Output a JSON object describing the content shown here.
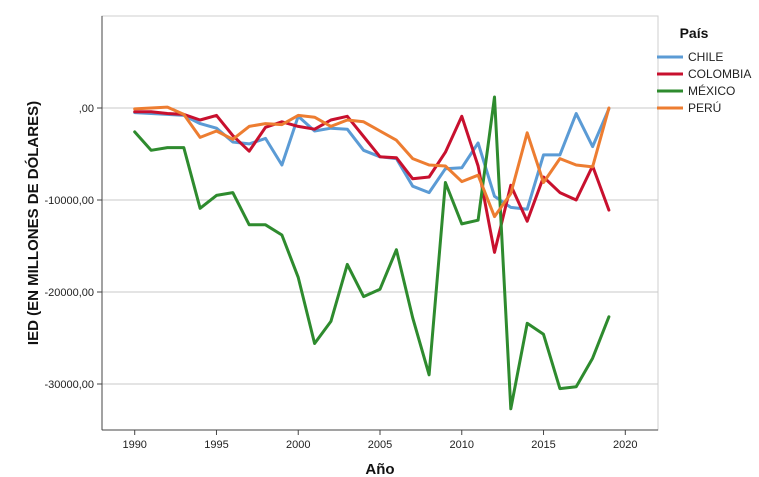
{
  "chart_data": {
    "type": "line",
    "xlabel": "Año",
    "ylabel": "IED (EN MILLONES DE DÓLARES)",
    "legend_title": "País",
    "legend_position": "top-right",
    "grid": true,
    "xlim": [
      1988,
      2022
    ],
    "ylim": [
      -35000,
      10000
    ],
    "x_ticks": [
      1990,
      1995,
      2000,
      2005,
      2010,
      2015,
      2020
    ],
    "x_tick_labels": [
      "1990",
      "1995",
      "2000",
      "2005",
      "2010",
      "2015",
      "2020"
    ],
    "y_ticks": [
      0,
      -10000,
      -20000,
      -30000
    ],
    "y_tick_labels": [
      ",00",
      "-10000,00",
      "-20000,00",
      "-30000,00"
    ],
    "x": [
      1990,
      1991,
      1992,
      1993,
      1994,
      1995,
      1996,
      1997,
      1998,
      1999,
      2000,
      2001,
      2002,
      2003,
      2004,
      2005,
      2006,
      2007,
      2008,
      2009,
      2010,
      2011,
      2012,
      2013,
      2014,
      2015,
      2016,
      2017,
      2018,
      2019
    ],
    "series": [
      {
        "name": "CHILE",
        "color": "#5b9bd5",
        "values": [
          -500,
          -600,
          -700,
          -800,
          -1700,
          -2200,
          -3700,
          -3900,
          -3300,
          -6200,
          -900,
          -2500,
          -2200,
          -2300,
          -4600,
          -5300,
          -5500,
          -8500,
          -9200,
          -6600,
          -6500,
          -3800,
          -9600,
          -10800,
          -11000,
          -5100,
          -5100,
          -600,
          -4200,
          -100
        ]
      },
      {
        "name": "COLOMBIA",
        "color": "#c8102e",
        "values": [
          -400,
          -400,
          -600,
          -700,
          -1300,
          -800,
          -3000,
          -4700,
          -2100,
          -1500,
          -2000,
          -2300,
          -1300,
          -900,
          -3100,
          -5300,
          -5400,
          -7700,
          -7500,
          -4800,
          -900,
          -6300,
          -15700,
          -8400,
          -12300,
          -7500,
          -9200,
          -10000,
          -6300,
          -11100
        ]
      },
      {
        "name": "MÉXICO",
        "color": "#2e8b2e",
        "values": [
          -2600,
          -4600,
          -4300,
          -4300,
          -10900,
          -9500,
          -9200,
          -12700,
          -12700,
          -13800,
          -18400,
          -25600,
          -23200,
          -17000,
          -20500,
          -19700,
          -15400,
          -22800,
          -29000,
          -8100,
          -12600,
          -12200,
          1200,
          -32700,
          -23400,
          -24600,
          -30500,
          -30300,
          -27200,
          -22700
        ]
      },
      {
        "name": "PERÚ",
        "color": "#ed7d31",
        "values": [
          -100,
          0,
          100,
          -700,
          -3200,
          -2500,
          -3400,
          -2000,
          -1700,
          -1800,
          -800,
          -1000,
          -2000,
          -1300,
          -1500,
          -2500,
          -3500,
          -5500,
          -6200,
          -6300,
          -8000,
          -7300,
          -11800,
          -9300,
          -2700,
          -8100,
          -5500,
          -6200,
          -6400,
          0
        ]
      }
    ]
  }
}
